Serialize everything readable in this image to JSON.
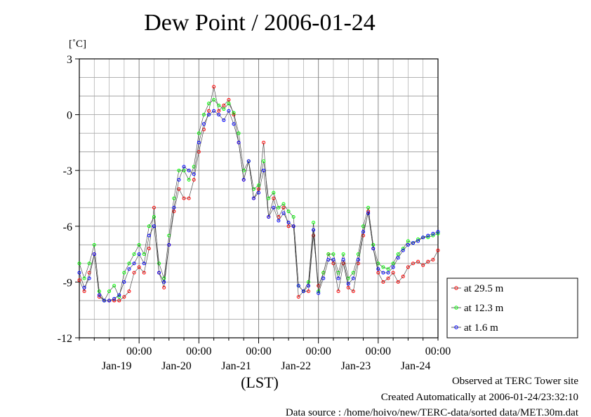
{
  "chart_data": {
    "type": "line",
    "title": "Dew Point / 2006-01-24",
    "ylabel": "[˚C]",
    "xlabel": "(LST)",
    "ylim": [
      -12,
      3
    ],
    "yticks": [
      "3",
      "0",
      "-3",
      "-6",
      "-9",
      "-12"
    ],
    "xlim_hours": [
      0,
      144
    ],
    "xticks": [
      {
        "time": "00:00",
        "date": "Jan-19"
      },
      {
        "time": "00:00",
        "date": "Jan-20"
      },
      {
        "time": "00:00",
        "date": "Jan-21"
      },
      {
        "time": "00:00",
        "date": "Jan-22"
      },
      {
        "time": "00:00",
        "date": "Jan-23"
      },
      {
        "time": "00:00",
        "date": "Jan-24"
      }
    ],
    "grid": true,
    "legend_position": "right",
    "series": [
      {
        "name": "at 29.5 m",
        "color": "#ff0000",
        "x": [
          0,
          2,
          4,
          6,
          8,
          10,
          12,
          14,
          16,
          18,
          20,
          22,
          24,
          26,
          28,
          30,
          32,
          34,
          36,
          38,
          40,
          42,
          44,
          46,
          48,
          50,
          52,
          54,
          56,
          58,
          60,
          62,
          64,
          66,
          68,
          70,
          72,
          74,
          76,
          78,
          80,
          82,
          84,
          86,
          88,
          90,
          92,
          94,
          96,
          98,
          100,
          102,
          104,
          106,
          108,
          110,
          112,
          114,
          116,
          118,
          120,
          122,
          124,
          126,
          128,
          130,
          132,
          134,
          136,
          138,
          140,
          142,
          144
        ],
        "y": [
          -8.9,
          -9.5,
          -8.5,
          -7.5,
          -9.8,
          -10,
          -10,
          -10,
          -10,
          -9.8,
          -9.5,
          -8.5,
          -8.2,
          -8.5,
          -7.2,
          -5,
          -8.5,
          -9.3,
          -7,
          -5.2,
          -4,
          -4.5,
          -4.5,
          -3.5,
          -2,
          -0.8,
          0.2,
          1.5,
          0.2,
          0.5,
          0.8,
          0,
          -1.5,
          -3.5,
          -2.5,
          -4.5,
          -4,
          -1.5,
          -5.5,
          -4.5,
          -5.5,
          -5,
          -6,
          -6,
          -9.8,
          -9.5,
          -9.5,
          -6.5,
          -9.2,
          -8.5,
          -7.5,
          -8,
          -9.5,
          -8,
          -9.3,
          -9.5,
          -8,
          -6.5,
          -5.2,
          -7.2,
          -8.5,
          -9,
          -8.8,
          -8.5,
          -9,
          -8.7,
          -8.2,
          -8.0,
          -7.9,
          -8.1,
          -7.9,
          -7.8,
          -7.3
        ]
      },
      {
        "name": "at 12.3 m",
        "color": "#00ff00",
        "x": [
          0,
          2,
          4,
          6,
          8,
          10,
          12,
          14,
          16,
          18,
          20,
          22,
          24,
          26,
          28,
          30,
          32,
          34,
          36,
          38,
          40,
          42,
          44,
          46,
          48,
          50,
          52,
          54,
          56,
          58,
          60,
          62,
          64,
          66,
          68,
          70,
          72,
          74,
          76,
          78,
          80,
          82,
          84,
          86,
          88,
          90,
          92,
          94,
          96,
          98,
          100,
          102,
          104,
          106,
          108,
          110,
          112,
          114,
          116,
          118,
          120,
          122,
          124,
          126,
          128,
          130,
          132,
          134,
          136,
          138,
          140,
          142,
          144
        ],
        "y": [
          -8,
          -8.8,
          -8,
          -7,
          -9.5,
          -10,
          -9.5,
          -9.2,
          -9.8,
          -8.5,
          -8,
          -7.5,
          -7,
          -7.5,
          -6,
          -5.5,
          -8,
          -8.8,
          -6.5,
          -4.5,
          -3,
          -3,
          -3.5,
          -2.8,
          -1,
          0,
          0.6,
          0.8,
          0.5,
          0.3,
          0.6,
          0.1,
          -1,
          -3,
          -2.5,
          -4,
          -3.8,
          -2.5,
          -4.5,
          -4.2,
          -5,
          -4.8,
          -5.2,
          -5.5,
          -9.2,
          -9.5,
          -9,
          -5.8,
          -9.5,
          -8.5,
          -7.5,
          -7.5,
          -8.5,
          -7.5,
          -8.8,
          -8.5,
          -7.5,
          -6,
          -5,
          -7,
          -8,
          -8.2,
          -8.3,
          -8,
          -7.5,
          -7.2,
          -6.8,
          -6.9,
          -6.7,
          -6.6,
          -6.6,
          -6.5,
          -6.4
        ]
      },
      {
        "name": "at 1.6 m",
        "color": "#0000ff",
        "x": [
          0,
          2,
          4,
          6,
          8,
          10,
          12,
          14,
          16,
          18,
          20,
          22,
          24,
          26,
          28,
          30,
          32,
          34,
          36,
          38,
          40,
          42,
          44,
          46,
          48,
          50,
          52,
          54,
          56,
          58,
          60,
          62,
          64,
          66,
          68,
          70,
          72,
          74,
          76,
          78,
          80,
          82,
          84,
          86,
          88,
          90,
          92,
          94,
          96,
          98,
          100,
          102,
          104,
          106,
          108,
          110,
          112,
          114,
          116,
          118,
          120,
          122,
          124,
          126,
          128,
          130,
          132,
          134,
          136,
          138,
          140,
          142,
          144
        ],
        "y": [
          -8.5,
          -9.3,
          -8.8,
          -7.5,
          -9.7,
          -10,
          -10,
          -9.9,
          -9.7,
          -9,
          -8.3,
          -8,
          -7.5,
          -8,
          -6.5,
          -6,
          -8.5,
          -9,
          -7,
          -5,
          -3.5,
          -2.8,
          -3,
          -3.2,
          -1.5,
          -0.5,
          0,
          0.2,
          0,
          -0.3,
          0.2,
          -0.5,
          -1.5,
          -3.5,
          -2.5,
          -4.5,
          -4.2,
          -3,
          -5.5,
          -5,
          -5.7,
          -5.3,
          -5.8,
          -6,
          -9.2,
          -9.5,
          -9.2,
          -6.2,
          -9.6,
          -8.8,
          -7.8,
          -7.8,
          -8.8,
          -7.8,
          -9.1,
          -8.8,
          -7.8,
          -6.3,
          -5.3,
          -7.2,
          -8.3,
          -8.5,
          -8.5,
          -8.2,
          -7.7,
          -7.3,
          -7.0,
          -6.9,
          -6.8,
          -6.6,
          -6.5,
          -6.4,
          -6.3
        ]
      }
    ]
  },
  "notes": {
    "observed": "Observed at TERC Tower site",
    "created": "Created Automatically at 2006-01-24/23:32:10",
    "source": "Data source : /home/hoivo/new/TERC-data/sorted  data/MET.30m.dat"
  }
}
